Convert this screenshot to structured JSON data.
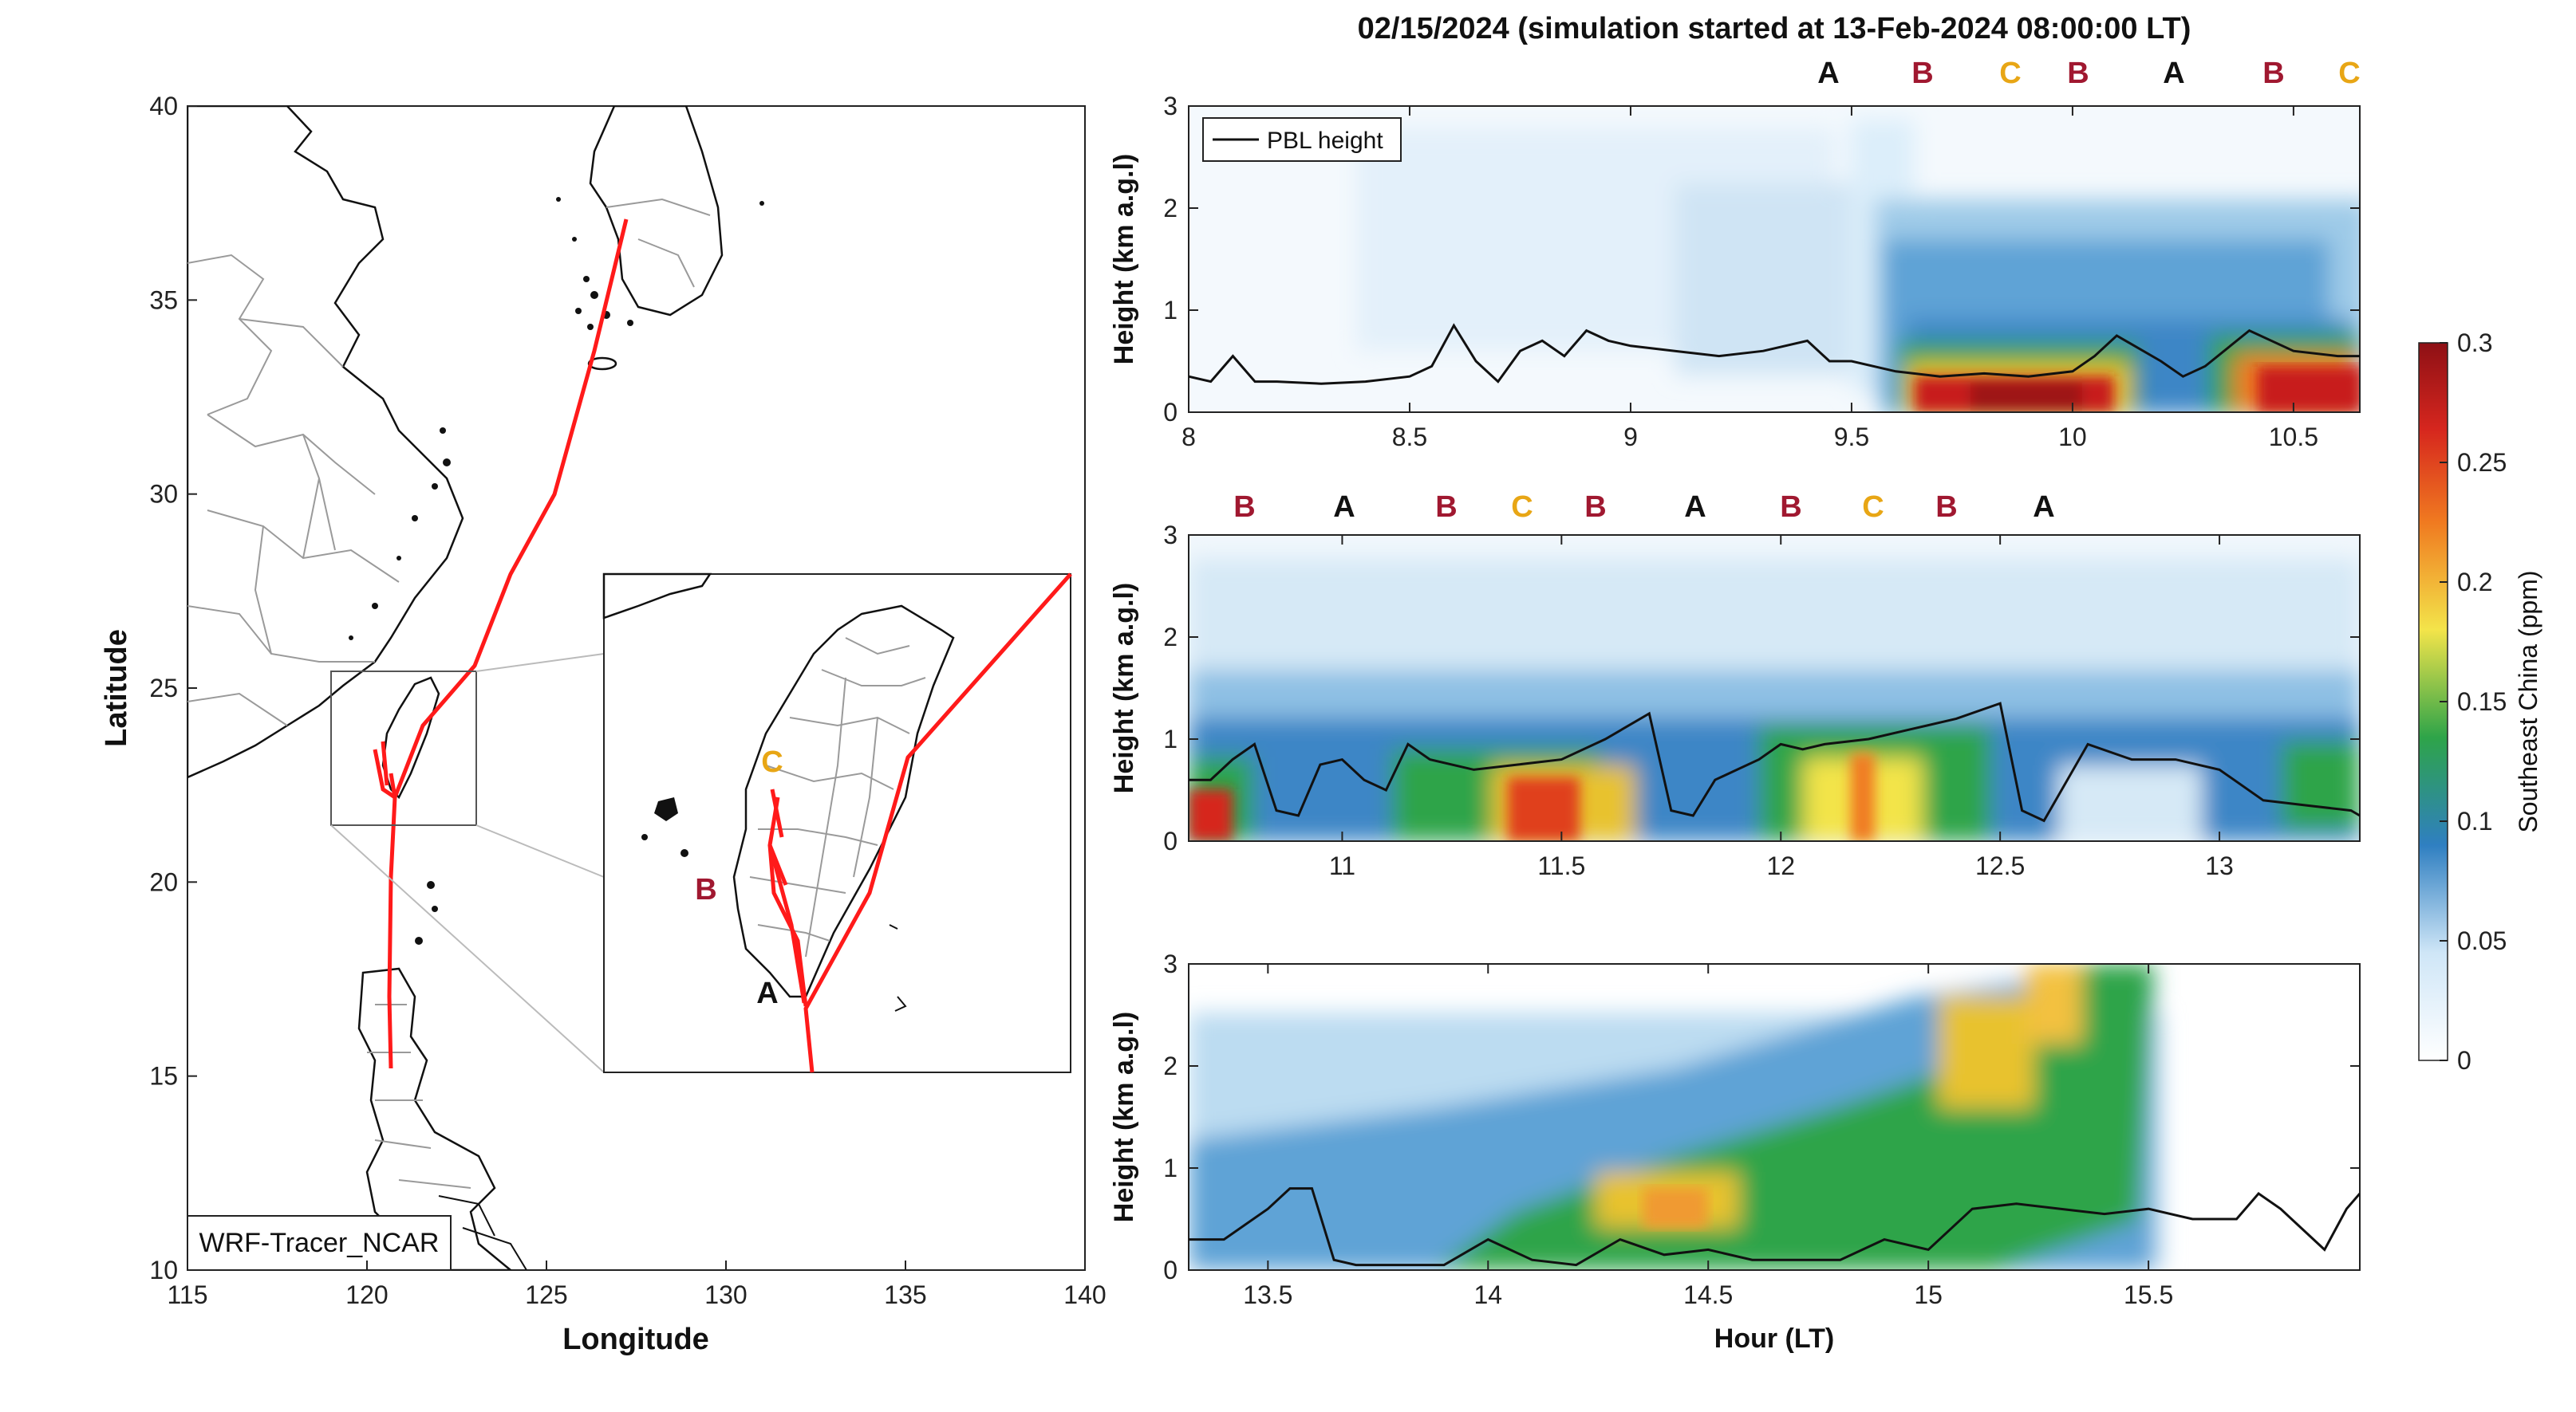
{
  "title": "02/15/2024 (simulation started at 13-Feb-2024 08:00:00 LT)",
  "map": {
    "xlabel": "Longitude",
    "ylabel": "Latitude",
    "xticks": [
      "115",
      "120",
      "125",
      "130",
      "135",
      "140"
    ],
    "yticks": [
      "10",
      "15",
      "20",
      "25",
      "30",
      "35",
      "40"
    ],
    "model_label": "WRF-Tracer_NCAR",
    "trajectory_color": "#ff1a1a",
    "inset_markers": [
      {
        "label": "C",
        "color": "#e8a615"
      },
      {
        "label": "B",
        "color": "#a01830"
      },
      {
        "label": "A",
        "color": "#111111"
      }
    ]
  },
  "colorbar": {
    "label": "Southeast China (ppm)",
    "ticks": [
      "0",
      "0.05",
      "0.1",
      "0.15",
      "0.2",
      "0.25",
      "0.3"
    ]
  },
  "x_axis_label": "Hour (LT)",
  "legend_label": "PBL height",
  "panels": [
    {
      "ylabel": "Height (km a.g.l)",
      "xticks": [
        "8",
        "8.5",
        "9",
        "9.5",
        "10",
        "10.5"
      ],
      "yticks": [
        "0",
        "1",
        "2",
        "3"
      ],
      "markers": [
        {
          "label": "A",
          "color": "#111111"
        },
        {
          "label": "B",
          "color": "#a01830"
        },
        {
          "label": "C",
          "color": "#e8a615"
        },
        {
          "label": "B",
          "color": "#a01830"
        },
        {
          "label": "A",
          "color": "#111111"
        },
        {
          "label": "B",
          "color": "#a01830"
        },
        {
          "label": "C",
          "color": "#e8a615"
        }
      ]
    },
    {
      "ylabel": "Height (km a.g.l)",
      "xticks": [
        "11",
        "11.5",
        "12",
        "12.5",
        "13"
      ],
      "yticks": [
        "0",
        "1",
        "2",
        "3"
      ],
      "markers": [
        {
          "label": "B",
          "color": "#a01830"
        },
        {
          "label": "A",
          "color": "#111111"
        },
        {
          "label": "B",
          "color": "#a01830"
        },
        {
          "label": "C",
          "color": "#e8a615"
        },
        {
          "label": "B",
          "color": "#a01830"
        },
        {
          "label": "A",
          "color": "#111111"
        },
        {
          "label": "B",
          "color": "#a01830"
        },
        {
          "label": "C",
          "color": "#e8a615"
        },
        {
          "label": "B",
          "color": "#a01830"
        },
        {
          "label": "A",
          "color": "#111111"
        }
      ]
    },
    {
      "ylabel": "Height (km a.g.l)",
      "xticks": [
        "13.5",
        "14",
        "14.5",
        "15",
        "15.5"
      ],
      "yticks": [
        "0",
        "1",
        "2",
        "3"
      ],
      "markers": []
    }
  ],
  "chart_data": [
    {
      "type": "line",
      "series": [
        {
          "name": "PBL height",
          "x": [
            8.0,
            8.05,
            8.1,
            8.15,
            8.2,
            8.3,
            8.4,
            8.5,
            8.55,
            8.6,
            8.65,
            8.7,
            8.75,
            8.8,
            8.85,
            8.9,
            8.95,
            9.0,
            9.1,
            9.2,
            9.3,
            9.4,
            9.45,
            9.5,
            9.6,
            9.7,
            9.8,
            9.9,
            10.0,
            10.05,
            10.1,
            10.2,
            10.25,
            10.3,
            10.4,
            10.5,
            10.6,
            10.65
          ],
          "y": [
            0.35,
            0.3,
            0.55,
            0.3,
            0.3,
            0.28,
            0.3,
            0.35,
            0.45,
            0.85,
            0.5,
            0.3,
            0.6,
            0.7,
            0.55,
            0.8,
            0.7,
            0.65,
            0.6,
            0.55,
            0.6,
            0.7,
            0.5,
            0.5,
            0.4,
            0.35,
            0.38,
            0.35,
            0.4,
            0.55,
            0.75,
            0.5,
            0.35,
            0.45,
            0.8,
            0.6,
            0.55,
            0.55
          ]
        }
      ],
      "xlim": [
        8.0,
        10.65
      ],
      "ylim": [
        0,
        3
      ],
      "xlabel": "",
      "ylabel": "Height (km a.g.l)"
    },
    {
      "type": "line",
      "series": [
        {
          "name": "PBL height",
          "x": [
            10.65,
            10.7,
            10.75,
            10.8,
            10.85,
            10.9,
            10.95,
            11.0,
            11.05,
            11.1,
            11.15,
            11.2,
            11.3,
            11.4,
            11.5,
            11.6,
            11.7,
            11.75,
            11.8,
            11.85,
            11.9,
            11.95,
            12.0,
            12.05,
            12.1,
            12.2,
            12.3,
            12.4,
            12.5,
            12.55,
            12.6,
            12.7,
            12.8,
            12.9,
            13.0,
            13.1,
            13.2,
            13.3,
            13.32
          ],
          "y": [
            0.6,
            0.6,
            0.8,
            0.95,
            0.3,
            0.25,
            0.75,
            0.8,
            0.6,
            0.5,
            0.95,
            0.8,
            0.7,
            0.75,
            0.8,
            1.0,
            1.25,
            0.3,
            0.25,
            0.6,
            0.7,
            0.8,
            0.95,
            0.9,
            0.95,
            1.0,
            1.1,
            1.2,
            1.35,
            0.3,
            0.2,
            0.95,
            0.8,
            0.8,
            0.7,
            0.4,
            0.35,
            0.3,
            0.25
          ]
        }
      ],
      "xlim": [
        10.65,
        13.32
      ],
      "ylim": [
        0,
        3
      ],
      "xlabel": "",
      "ylabel": "Height (km a.g.l)"
    },
    {
      "type": "line",
      "series": [
        {
          "name": "PBL height",
          "x": [
            13.32,
            13.4,
            13.5,
            13.55,
            13.6,
            13.65,
            13.7,
            13.8,
            13.9,
            14.0,
            14.1,
            14.2,
            14.3,
            14.4,
            14.5,
            14.6,
            14.7,
            14.8,
            14.9,
            15.0,
            15.1,
            15.2,
            15.3,
            15.4,
            15.5,
            15.6,
            15.7,
            15.75,
            15.8,
            15.9,
            15.95,
            15.98
          ],
          "y": [
            0.3,
            0.3,
            0.6,
            0.8,
            0.8,
            0.1,
            0.05,
            0.05,
            0.05,
            0.3,
            0.1,
            0.05,
            0.3,
            0.15,
            0.2,
            0.1,
            0.1,
            0.1,
            0.3,
            0.2,
            0.6,
            0.65,
            0.6,
            0.55,
            0.6,
            0.5,
            0.5,
            0.75,
            0.6,
            0.2,
            0.6,
            0.75
          ]
        }
      ],
      "xlim": [
        13.32,
        15.98
      ],
      "ylim": [
        0,
        3
      ],
      "xlabel": "Hour (LT)",
      "ylabel": "Height (km a.g.l)"
    }
  ]
}
